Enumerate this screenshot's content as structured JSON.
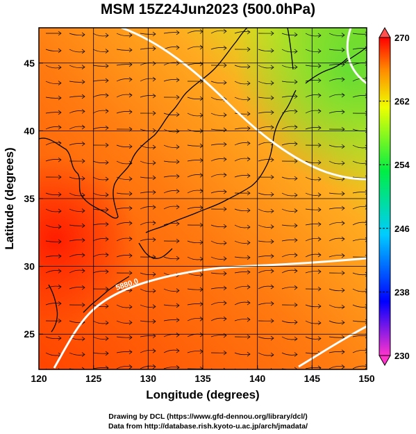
{
  "title": "MSM 15Z24Jun2023 (500.0hPa)",
  "map": {
    "xlabel": "Longitude (degrees)",
    "ylabel": "Latitude  (degrees)",
    "xlim": [
      120,
      150
    ],
    "ylim": [
      22.4,
      47.6
    ],
    "xticks": [
      "120",
      "125",
      "130",
      "135",
      "140",
      "145",
      "150"
    ],
    "yticks": [
      "25",
      "30",
      "35",
      "40",
      "45"
    ],
    "contour_label": "5880.0",
    "field": "temperature (K)",
    "colormap": [
      "#ff33cc",
      "#0000ff",
      "#00ccff",
      "#00ee44",
      "#eeff00",
      "#ff8800",
      "#ff0000"
    ]
  },
  "colorbar": {
    "min": 230,
    "max": 270,
    "ticks": [
      "230",
      "238",
      "246",
      "254",
      "262",
      "270"
    ]
  },
  "credits": {
    "line1": "Drawing by DCL (https://www.gfd-dennou.org/library/dcl/)",
    "line2": "Data from http://database.rish.kyoto-u.ac.jp/arch/jmadata/"
  }
}
